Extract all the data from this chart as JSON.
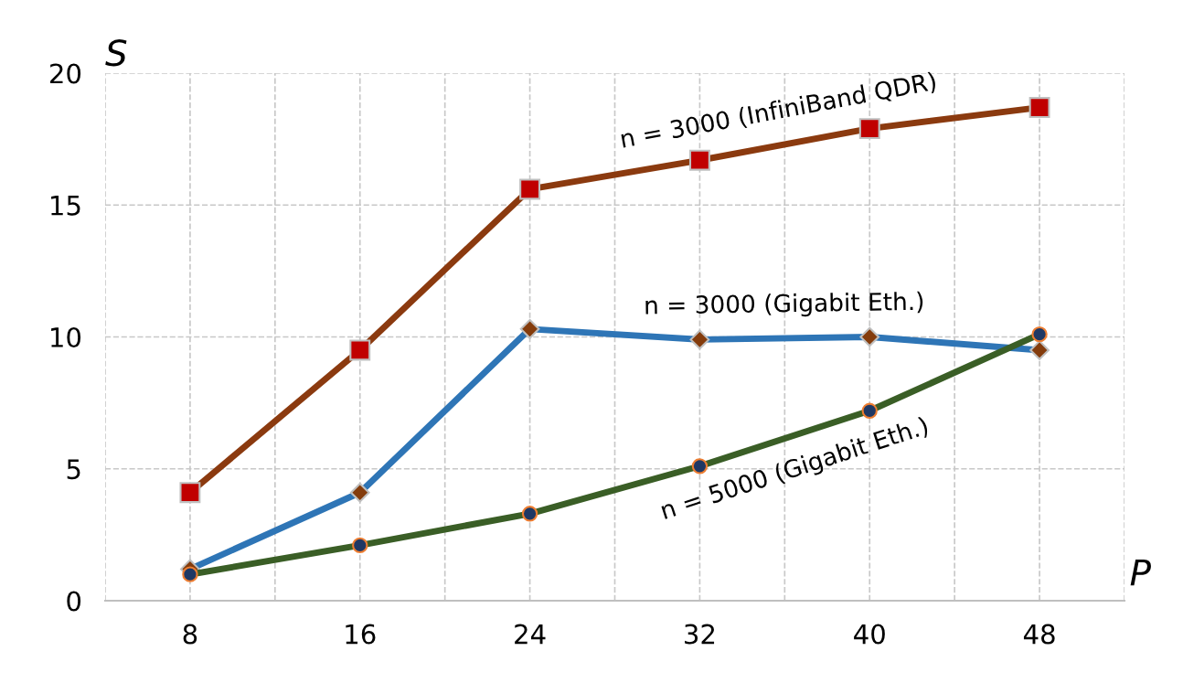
{
  "chart_data": {
    "type": "line",
    "xlabel": "P",
    "ylabel": "S",
    "x": [
      8,
      16,
      24,
      32,
      40,
      48
    ],
    "xlim": [
      4,
      52
    ],
    "xticks": [
      {
        "value": 4,
        "label": null
      },
      8,
      {
        "value": 12,
        "label": null
      },
      16,
      {
        "value": 20,
        "label": null
      },
      24,
      {
        "value": 28,
        "label": null
      },
      32,
      {
        "value": 36,
        "label": null
      },
      40,
      {
        "value": 44,
        "label": null
      },
      48,
      {
        "value": 52,
        "label": null
      }
    ],
    "ylim": [
      0,
      20
    ],
    "yticks": [
      0,
      5,
      10,
      15,
      20
    ],
    "grid": true,
    "line_style": "solid",
    "series": [
      {
        "name": "n = 3000 (InfiniBand QDR)",
        "color": "#8b3a0f",
        "marker": "square",
        "values": [
          4.1,
          9.5,
          15.6,
          16.7,
          17.9,
          18.7
        ]
      },
      {
        "name": "n = 3000 (Gigabit Eth.)",
        "color": "#2e75b6",
        "marker": "diamond",
        "values": [
          1.2,
          4.1,
          10.3,
          9.9,
          10.0,
          9.5
        ]
      },
      {
        "name": "n = 5000 (Gigabit Eth.)",
        "color": "#3a5e26",
        "marker": "circle",
        "values": [
          1.0,
          2.1,
          3.3,
          5.1,
          7.2,
          10.1
        ]
      }
    ]
  }
}
